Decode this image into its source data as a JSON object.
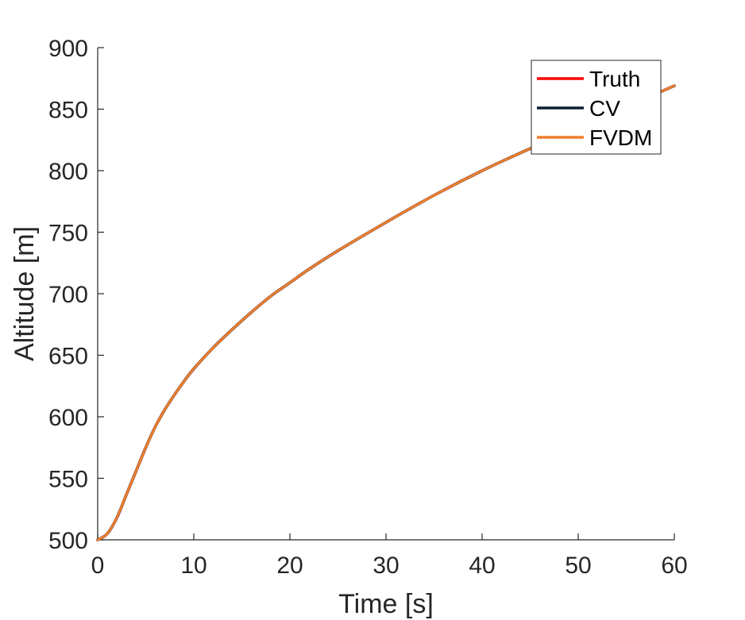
{
  "chart_data": {
    "type": "line",
    "xlabel": "Time [s]",
    "ylabel": "Altitude [m]",
    "xlim": [
      0,
      60
    ],
    "ylim": [
      500,
      900
    ],
    "xticks": [
      0,
      10,
      20,
      30,
      40,
      50,
      60
    ],
    "yticks": [
      500,
      550,
      600,
      650,
      700,
      750,
      800,
      850,
      900
    ],
    "grid": false,
    "legend_position": "top-right",
    "x": [
      0,
      1,
      2,
      3,
      4,
      5,
      6,
      7,
      8,
      9,
      10,
      12,
      14,
      16,
      18,
      20,
      22,
      25,
      30,
      35,
      40,
      45,
      50,
      55,
      60
    ],
    "series": [
      {
        "name": "Truth",
        "color": "#ff0000",
        "values": [
          500,
          505,
          518,
          537,
          556,
          575,
          592,
          606,
          618,
          629,
          639,
          656,
          671,
          685,
          698,
          709,
          720,
          735,
          758,
          780,
          800,
          818,
          835,
          852,
          869
        ]
      },
      {
        "name": "CV",
        "color": "#0e2035",
        "values": [
          500,
          505,
          518,
          537,
          556,
          575,
          592,
          606,
          618,
          629,
          639,
          656,
          671,
          685,
          698,
          709,
          720,
          735,
          758,
          780,
          800,
          818,
          835,
          852,
          869
        ]
      },
      {
        "name": "FVDM",
        "color": "#ec7f2e",
        "values": [
          500,
          505,
          518,
          537,
          556,
          575,
          592,
          606,
          618,
          629,
          639,
          656,
          671,
          685,
          698,
          709,
          720,
          735,
          758,
          780,
          800,
          818,
          835,
          852,
          869
        ]
      }
    ]
  }
}
